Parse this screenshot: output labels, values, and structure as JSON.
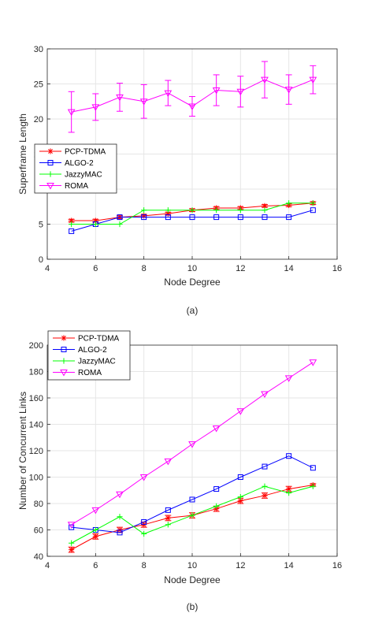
{
  "colors": {
    "PCP-TDMA": "#ff0000",
    "ALGO-2": "#0000ff",
    "JazzyMAC": "#00ff00",
    "ROMA": "#ff00ff",
    "grid": "#e6e6e6",
    "axis": "#262626"
  },
  "chart_data": [
    {
      "type": "line",
      "caption": "(a)",
      "xlabel": "Node Degree",
      "ylabel": "Superframe Length",
      "xlim": [
        4,
        16
      ],
      "ylim": [
        0,
        30
      ],
      "xticks": [
        4,
        6,
        8,
        10,
        12,
        14,
        16
      ],
      "yticks": [
        0,
        5,
        10,
        15,
        20,
        25,
        30
      ],
      "grid": true,
      "legend": "left-middle",
      "x": [
        5,
        6,
        7,
        8,
        9,
        10,
        11,
        12,
        13,
        14,
        15
      ],
      "series": [
        {
          "name": "PCP-TDMA",
          "marker": "asterisk",
          "values": [
            5.5,
            5.5,
            6.0,
            6.2,
            6.5,
            7.0,
            7.3,
            7.3,
            7.6,
            7.7,
            8.0
          ],
          "errors": [
            0.2,
            0.2,
            0.2,
            0.2,
            0.2,
            0.2,
            0.2,
            0.2,
            0.2,
            0.2,
            0.2
          ]
        },
        {
          "name": "ALGO-2",
          "marker": "square",
          "values": [
            4.0,
            5.0,
            6.0,
            6.0,
            6.0,
            6.0,
            6.0,
            6.0,
            6.0,
            6.0,
            7.0
          ]
        },
        {
          "name": "JazzyMAC",
          "marker": "plus",
          "values": [
            5.0,
            5.0,
            5.0,
            7.0,
            7.0,
            7.0,
            7.0,
            7.0,
            7.0,
            8.0,
            8.0
          ]
        },
        {
          "name": "ROMA",
          "marker": "triangle-down",
          "values": [
            21.0,
            21.7,
            23.1,
            22.5,
            23.7,
            21.8,
            24.1,
            23.9,
            25.6,
            24.2,
            25.6
          ],
          "errors": [
            2.9,
            1.9,
            2.0,
            2.4,
            1.8,
            1.4,
            2.2,
            2.2,
            2.6,
            2.1,
            2.0
          ]
        }
      ]
    },
    {
      "type": "line",
      "caption": "(b)",
      "xlabel": "Node Degree",
      "ylabel": "Number of Concurrent Links",
      "xlim": [
        4,
        16
      ],
      "ylim": [
        40,
        200
      ],
      "xticks": [
        4,
        6,
        8,
        10,
        12,
        14,
        16
      ],
      "yticks": [
        40,
        60,
        80,
        100,
        120,
        140,
        160,
        180,
        200
      ],
      "grid": true,
      "legend": "top-left",
      "x": [
        5,
        6,
        7,
        8,
        9,
        10,
        11,
        12,
        13,
        14,
        15
      ],
      "series": [
        {
          "name": "PCP-TDMA",
          "marker": "asterisk",
          "values": [
            45,
            55,
            60,
            64,
            69,
            71,
            76,
            82,
            86,
            91,
            94
          ],
          "errors": [
            2,
            2,
            2,
            2,
            2,
            2,
            2,
            2,
            2,
            2,
            1
          ]
        },
        {
          "name": "ALGO-2",
          "marker": "square",
          "values": [
            62,
            60,
            58,
            66,
            75,
            83,
            91,
            100,
            108,
            116,
            107
          ]
        },
        {
          "name": "JazzyMAC",
          "marker": "plus",
          "values": [
            50,
            60,
            70,
            57,
            64,
            71,
            78,
            85,
            93,
            88,
            93
          ]
        },
        {
          "name": "ROMA",
          "marker": "triangle-down",
          "values": [
            64,
            75,
            87,
            100,
            112,
            125,
            137,
            150,
            163,
            175,
            187
          ]
        }
      ]
    }
  ]
}
